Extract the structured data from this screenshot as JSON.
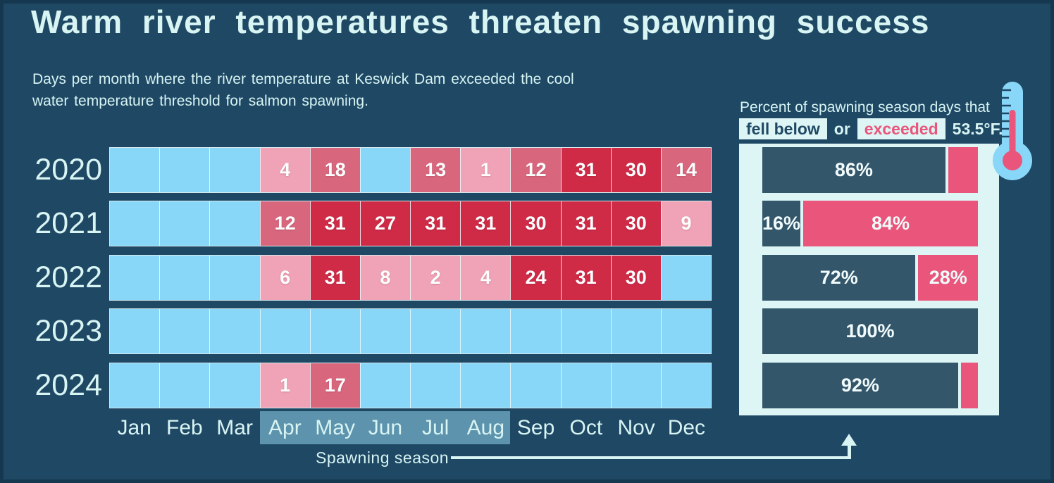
{
  "title": "Warm river temperatures threaten spawning success",
  "subtitle": {
    "line1": "Days per month where the river temperature at Keswick Dam exceeded the cool",
    "line2": "water temperature threshold for salmon spawning."
  },
  "colors": {
    "background": "#1e4864",
    "pale_text": "#d8f4f3",
    "cell_zero": "#88d6f8",
    "cell_low": "#f0a3b6",
    "cell_mid": "#d8677e",
    "cell_high": "#cf2b47",
    "cell_label": "#fdffff",
    "month_highlight": "#5d93ad",
    "panel_bg": "#ddf5f5",
    "bar_below": "#33566b",
    "bar_exceeded": "#e9557b",
    "thermometer_body": "#88d6f8",
    "thermometer_mercury": "#e9557b"
  },
  "chart_data": [
    {
      "type": "heatmap",
      "title": "Days per month where the river temperature at Keswick Dam exceeded the cool water temperature threshold for salmon spawning.",
      "rows": [
        "2020",
        "2021",
        "2022",
        "2023",
        "2024"
      ],
      "columns": [
        "Jan",
        "Feb",
        "Mar",
        "Apr",
        "May",
        "Jun",
        "Jul",
        "Aug",
        "Sep",
        "Oct",
        "Nov",
        "Dec"
      ],
      "values": [
        [
          0,
          0,
          0,
          4,
          18,
          0,
          13,
          1,
          12,
          31,
          30,
          14
        ],
        [
          0,
          0,
          0,
          12,
          31,
          27,
          31,
          31,
          30,
          31,
          30,
          9
        ],
        [
          0,
          0,
          0,
          6,
          31,
          8,
          2,
          4,
          24,
          31,
          30,
          0
        ],
        [
          0,
          0,
          0,
          0,
          0,
          0,
          0,
          0,
          0,
          0,
          0,
          0
        ],
        [
          0,
          0,
          0,
          1,
          17,
          0,
          0,
          0,
          0,
          0,
          0,
          0
        ]
      ],
      "label_rule": "cells with value 0 show no number",
      "color_bins": [
        {
          "max": 0,
          "color_key": "cell_zero"
        },
        {
          "max": 9,
          "color_key": "cell_low"
        },
        {
          "max": 19,
          "color_key": "cell_mid"
        },
        {
          "max": 31,
          "color_key": "cell_high"
        }
      ],
      "highlight": {
        "from": "Apr",
        "to": "Aug",
        "label": "Spawning season"
      }
    },
    {
      "type": "bar",
      "orientation": "horizontal-stacked",
      "title": "Percent of spawning season days that fell below or exceeded 53.5°F.",
      "categories": [
        "2020",
        "2021",
        "2022",
        "2023",
        "2024"
      ],
      "series": [
        {
          "name": "fell below",
          "values": [
            86,
            16,
            72,
            100,
            92
          ]
        },
        {
          "name": "exceeded",
          "values": [
            14,
            84,
            28,
            0,
            8
          ]
        }
      ],
      "segment_labels": [
        [
          "86%",
          ""
        ],
        [
          "16%",
          "84%"
        ],
        [
          "72%",
          "28%"
        ],
        [
          "100%",
          ""
        ],
        [
          "92%",
          ""
        ]
      ],
      "xlim": [
        0,
        100
      ],
      "legend": "inline chips in panel header"
    }
  ],
  "right_panel": {
    "header_line1": "Percent of spawning season days that",
    "chip_below": "fell below",
    "conjunction": "or",
    "chip_exceeded": "exceeded",
    "threshold": "53.5°F."
  },
  "icons": {
    "thermometer": "thermometer-icon",
    "arrow": "arrow-up-icon"
  }
}
